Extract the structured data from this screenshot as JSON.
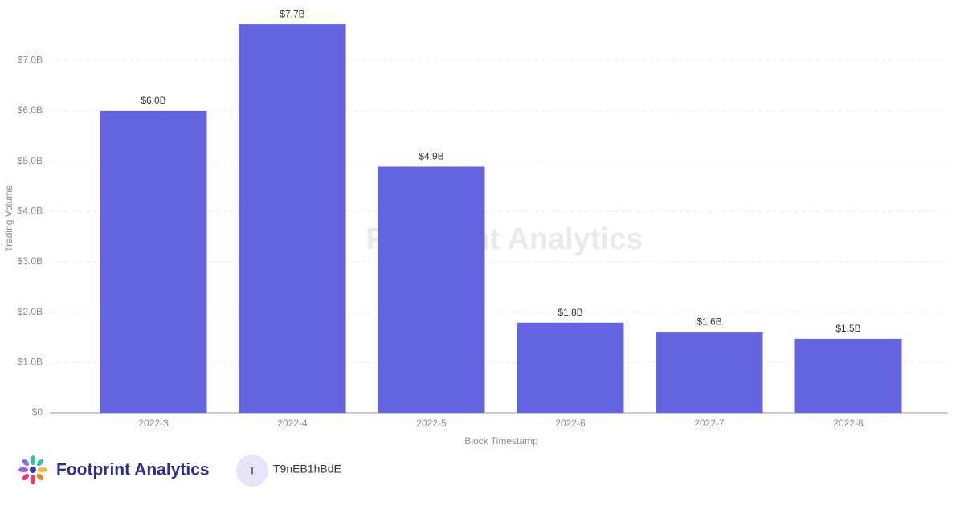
{
  "chart_data": {
    "type": "bar",
    "y_label": "Trading Volume",
    "x_label": "Block Timestamp",
    "watermark": "Footprint Analytics",
    "categories": [
      "2022-3",
      "2022-4",
      "2022-5",
      "2022-6",
      "2022-7",
      "2022-8"
    ],
    "values": [
      6.0,
      7.72,
      4.89,
      1.79,
      1.61,
      1.47
    ],
    "value_labels": [
      "$6.0B",
      "$7.7B",
      "$4.9B",
      "$1.8B",
      "$1.6B",
      "$1.5B"
    ],
    "color": "#6463e0",
    "ylim": [
      0,
      8.2
    ],
    "yticks": [
      {
        "value": 0,
        "label": "$0"
      },
      {
        "value": 1,
        "label": "$1.0B"
      },
      {
        "value": 2,
        "label": "$2.0B"
      },
      {
        "value": 3,
        "label": "$3.0B"
      },
      {
        "value": 4,
        "label": "$4.0B"
      },
      {
        "value": 5,
        "label": "$5.0B"
      },
      {
        "value": 6,
        "label": "$6.0B"
      },
      {
        "value": 7,
        "label": "$7.0B"
      }
    ],
    "grid": true
  },
  "footer": {
    "brand": "Footprint Analytics",
    "avatar": "T",
    "user": "T9nEB1hBdE"
  }
}
